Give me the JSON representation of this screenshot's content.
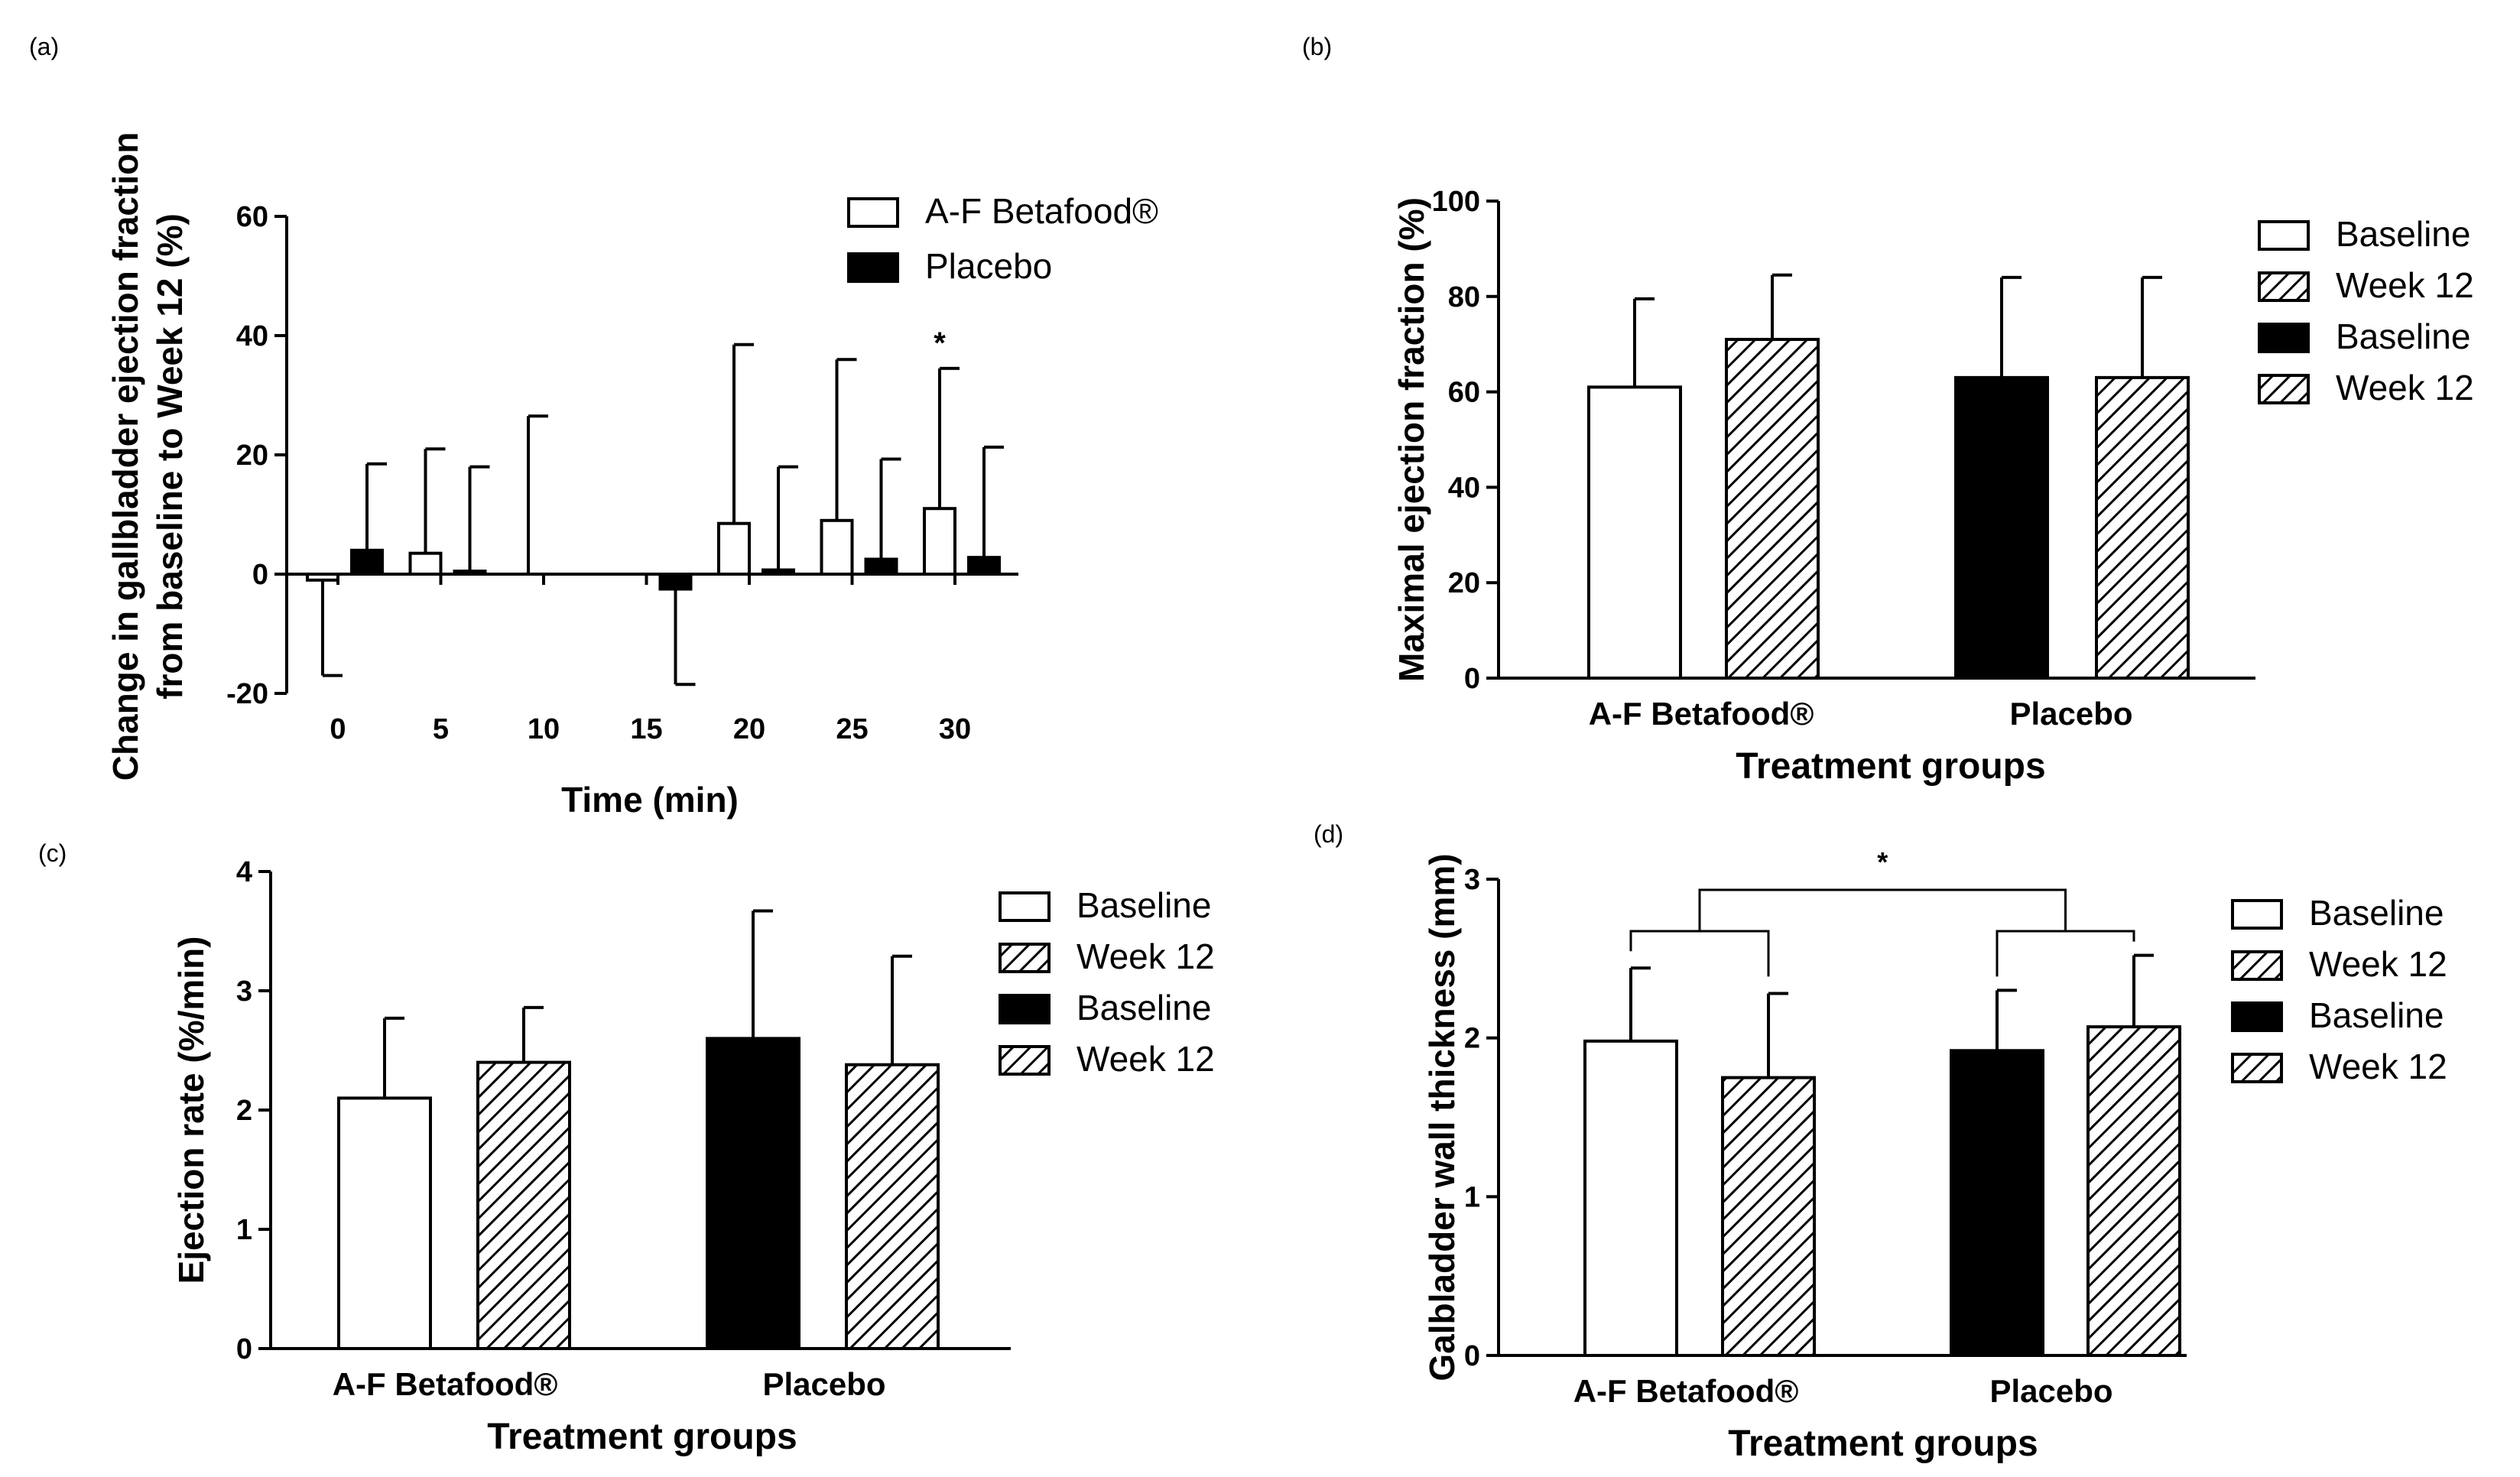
{
  "figure": {
    "panels": [
      {
        "id": "a",
        "label": "(a)"
      },
      {
        "id": "b",
        "label": "(b)"
      },
      {
        "id": "c",
        "label": "(c)"
      },
      {
        "id": "d",
        "label": "(d)"
      }
    ]
  },
  "colors": {
    "ink": "#000000",
    "background": "#ffffff"
  },
  "chart_data": [
    {
      "id": "a",
      "type": "bar",
      "title": "",
      "xlabel": "Time (min)",
      "ylabel": [
        "Change in gallbladder ejection fraction",
        "from baseline to Week 12 (%)"
      ],
      "ylim": [
        -20,
        60
      ],
      "yticks": [
        -20,
        0,
        20,
        40,
        60
      ],
      "categories": [
        "0",
        "5",
        "10",
        "15",
        "20",
        "25",
        "30"
      ],
      "series": [
        {
          "name": "A-F Betafood®",
          "fill": "open",
          "values": [
            -1,
            3.5,
            0,
            0,
            8.5,
            9,
            11
          ],
          "error": [
            16,
            17.5,
            26.5,
            0,
            30,
            27,
            23.5
          ]
        },
        {
          "name": "Placebo",
          "fill": "solid",
          "values": [
            4,
            0.5,
            0,
            -2.5,
            0.7,
            2.5,
            2.8
          ],
          "error": [
            14.5,
            17.5,
            0,
            16,
            17.3,
            16.8,
            18.5
          ]
        }
      ],
      "error_direction": "away-from-zero",
      "annotations": [
        {
          "text": "*",
          "category": "30",
          "series": "A-F Betafood®"
        }
      ],
      "legend_position": "top-right",
      "grid": false
    },
    {
      "id": "b",
      "type": "bar",
      "xlabel": "Treatment groups",
      "ylabel": "Maximal ejection fraction (%)",
      "ylim": [
        0,
        100
      ],
      "yticks": [
        0,
        20,
        40,
        60,
        80,
        100
      ],
      "categories": [
        "A-F Betafood®",
        "Placebo"
      ],
      "series": [
        {
          "name": "Baseline",
          "style": "open",
          "values": [
            61,
            null
          ]
        },
        {
          "name": "Week 12",
          "style": "hatch",
          "values": [
            71,
            null
          ]
        },
        {
          "name": "Baseline",
          "style": "solid",
          "values": [
            null,
            63
          ]
        },
        {
          "name": "Week 12",
          "style": "hatch",
          "values": [
            null,
            63
          ]
        }
      ],
      "error": [
        18.5,
        13.5,
        21,
        21
      ],
      "legend_position": "right",
      "grid": false
    },
    {
      "id": "c",
      "type": "bar",
      "xlabel": "Treatment groups",
      "ylabel": "Ejection rate (%/min)",
      "ylim": [
        0,
        4
      ],
      "yticks": [
        0,
        1,
        2,
        3,
        4
      ],
      "categories": [
        "A-F Betafood®",
        "Placebo"
      ],
      "series": [
        {
          "name": "Baseline",
          "style": "open",
          "values": [
            2.1,
            null
          ]
        },
        {
          "name": "Week 12",
          "style": "hatch",
          "values": [
            2.4,
            null
          ]
        },
        {
          "name": "Baseline",
          "style": "solid",
          "values": [
            null,
            2.6
          ]
        },
        {
          "name": "Week 12",
          "style": "hatch",
          "values": [
            null,
            2.38
          ]
        }
      ],
      "error": [
        0.67,
        0.46,
        1.07,
        0.91
      ],
      "legend_position": "top-right",
      "grid": false
    },
    {
      "id": "d",
      "type": "bar",
      "xlabel": "Treatment groups",
      "ylabel": "Galbladder wall thickness (mm)",
      "ylim": [
        0,
        3
      ],
      "yticks": [
        0,
        1,
        2,
        3
      ],
      "categories": [
        "A-F Betafood®",
        "Placebo"
      ],
      "series": [
        {
          "name": "Baseline",
          "style": "open",
          "values": [
            1.98,
            null
          ]
        },
        {
          "name": "Week 12",
          "style": "hatch",
          "values": [
            1.75,
            null
          ]
        },
        {
          "name": "Baseline",
          "style": "solid",
          "values": [
            null,
            1.92
          ]
        },
        {
          "name": "Week 12",
          "style": "hatch",
          "values": [
            null,
            2.07
          ]
        }
      ],
      "error": [
        0.46,
        0.53,
        0.38,
        0.45
      ],
      "annotations": [
        {
          "text": "*",
          "type": "bracket",
          "between": [
            "A-F Betafood® change",
            "Placebo change"
          ]
        }
      ],
      "legend_position": "top-right",
      "grid": false
    }
  ]
}
